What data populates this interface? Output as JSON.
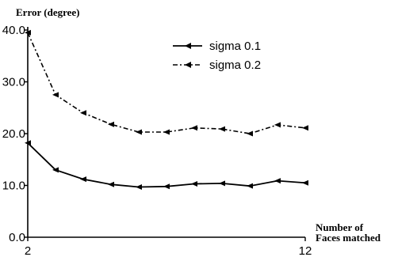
{
  "chart_data": {
    "type": "line",
    "title": "",
    "ylabel": "Error (degree)",
    "xlabel_line1": "Number of",
    "xlabel_line2": "Faces matched",
    "xlim": [
      2,
      12
    ],
    "ylim": [
      0,
      40
    ],
    "x_ticks": [
      "2",
      "12"
    ],
    "y_ticks": [
      "0.0",
      "10.0",
      "20.0",
      "30.0",
      "40.0"
    ],
    "legend_position": "top-right",
    "x": [
      2,
      3,
      4,
      5,
      6,
      7,
      8,
      9,
      10,
      11,
      12
    ],
    "series": [
      {
        "name": "sigma 0.1",
        "style": "solid",
        "color": "#000000",
        "values": [
          18.2,
          13.0,
          11.2,
          10.2,
          9.7,
          9.8,
          10.3,
          10.4,
          9.9,
          10.9,
          10.5
        ]
      },
      {
        "name": "sigma 0.2",
        "style": "dashdot",
        "color": "#000000",
        "values": [
          39.5,
          27.5,
          24.0,
          21.8,
          20.3,
          20.3,
          21.1,
          20.9,
          20.0,
          21.7,
          21.1
        ]
      }
    ]
  }
}
